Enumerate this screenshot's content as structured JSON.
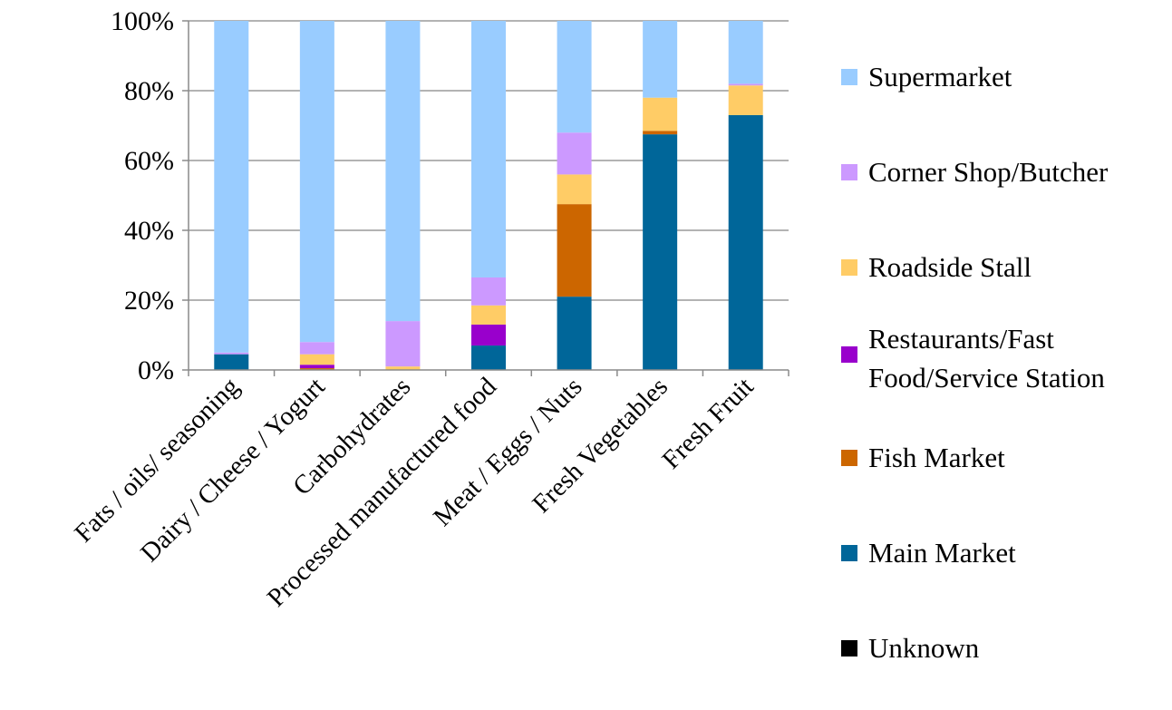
{
  "chart_data": {
    "type": "bar",
    "stacked": true,
    "percent": true,
    "title": "",
    "xlabel": "",
    "ylabel": "",
    "ylim": [
      0,
      100
    ],
    "yticks": [
      "0%",
      "20%",
      "40%",
      "60%",
      "80%",
      "100%"
    ],
    "grid": true,
    "legend_position": "right",
    "categories": [
      "Fats / oils/ seasoning",
      "Dairy / Cheese / Yogurt",
      "Carbohydrates",
      "Processed manufactured food",
      "Meat / Eggs / Nuts",
      "Fresh Vegetables",
      "Fresh Fruit"
    ],
    "series": [
      {
        "name": "Unknown",
        "color": "#000000",
        "values": [
          0,
          0,
          0,
          0,
          0,
          0,
          0
        ]
      },
      {
        "name": "Main Market",
        "color": "#006699",
        "values": [
          4.5,
          0,
          0,
          7,
          21,
          67.5,
          73
        ]
      },
      {
        "name": "Fish Market",
        "color": "#cc6600",
        "values": [
          0,
          0.5,
          0,
          0,
          26.5,
          1,
          0
        ]
      },
      {
        "name": "Restaurants/Fast Food/Service Station",
        "color": "#9900cc",
        "values": [
          0,
          1,
          0,
          6,
          0,
          0,
          0
        ]
      },
      {
        "name": "Roadside Stall",
        "color": "#ffcc66",
        "values": [
          0,
          3,
          1,
          5.5,
          8.5,
          9.5,
          8.5
        ]
      },
      {
        "name": "Corner Shop/Butcher",
        "color": "#cc99ff",
        "values": [
          0.5,
          3.5,
          13,
          8,
          12,
          0,
          0.5
        ]
      },
      {
        "name": "Supermarket",
        "color": "#99ccff",
        "values": [
          95,
          92,
          86,
          73.5,
          32,
          22,
          18
        ]
      }
    ],
    "legend_order": [
      "Supermarket",
      "Corner Shop/Butcher",
      "Roadside Stall",
      "Restaurants/Fast Food/Service Station",
      "Fish Market",
      "Main Market",
      "Unknown"
    ],
    "legend_lines": {
      "Restaurants/Fast Food/Service Station": [
        "Restaurants/Fast",
        "Food/Service Station"
      ]
    }
  }
}
